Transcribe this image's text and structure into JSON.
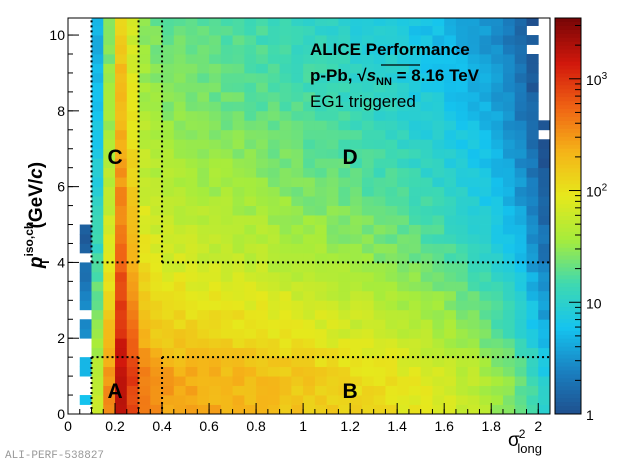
{
  "chart_data": {
    "type": "heatmap",
    "title": "",
    "xlabel": "σ²long",
    "xlabel_main": "σ",
    "xlabel_sup": "2",
    "xlabel_sub": "long",
    "ylabel": "p_T^{iso,ch} (GeV/c)",
    "ylabel_main": "p",
    "ylabel_sup": "iso,ch",
    "ylabel_sub": "T",
    "ylabel_unit": "(GeV/",
    "ylabel_unit_c": "c",
    "ylabel_unit_end": ")",
    "xlim": [
      0,
      2.05
    ],
    "ylim": [
      0,
      10.45
    ],
    "zlim": [
      1,
      3500
    ],
    "zscale": "log",
    "xticks": [
      0,
      0.2,
      0.4,
      0.6,
      0.8,
      1,
      1.2,
      1.4,
      1.6,
      1.8,
      2
    ],
    "xtick_labels": [
      "0",
      "0.2",
      "0.4",
      "0.6",
      "0.8",
      "1",
      "1.2",
      "1.4",
      "1.6",
      "1.8",
      "2"
    ],
    "yticks": [
      0,
      2,
      4,
      6,
      8,
      10
    ],
    "ytick_labels": [
      "0",
      "2",
      "4",
      "6",
      "8",
      "10"
    ],
    "zticks": [
      {
        "value": 1,
        "base": "1",
        "exp": ""
      },
      {
        "value": 10,
        "base": "10",
        "exp": ""
      },
      {
        "value": 100,
        "base": "10",
        "exp": "2"
      },
      {
        "value": 1000,
        "base": "10",
        "exp": "3"
      }
    ],
    "x_bin_width": 0.05,
    "y_bin_width": 0.25,
    "x_profile_counts_low_pt": [
      0,
      6,
      60,
      350,
      2200,
      900,
      420,
      330,
      300,
      285,
      270,
      260,
      250,
      240,
      230,
      220,
      210,
      200,
      190,
      180,
      170,
      160,
      150,
      142,
      134,
      126,
      118,
      110,
      102,
      94,
      86,
      78,
      70,
      62,
      54,
      46,
      38,
      30,
      22,
      15,
      9
    ],
    "y_profile_scale": [
      {
        "pt": 0,
        "scale": 1.0
      },
      {
        "pt": 1,
        "scale": 0.95
      },
      {
        "pt": 2,
        "scale": 0.55
      },
      {
        "pt": 4,
        "scale": 0.25
      },
      {
        "pt": 6,
        "scale": 0.15
      },
      {
        "pt": 8,
        "scale": 0.1
      },
      {
        "pt": 10.45,
        "scale": 0.07
      }
    ],
    "regions": [
      {
        "label": "A",
        "x": [
          0.1,
          0.3
        ],
        "y": [
          0,
          1.5
        ]
      },
      {
        "label": "B",
        "x": [
          0.4,
          2.05
        ],
        "y": [
          0,
          1.5
        ]
      },
      {
        "label": "C",
        "x": [
          0.1,
          0.3
        ],
        "y": [
          4,
          10.45
        ]
      },
      {
        "label": "D",
        "x": [
          0.4,
          2.05
        ],
        "y": [
          4,
          10.45
        ]
      }
    ],
    "annotations": {
      "line1": "ALICE Performance",
      "line2_pre": "p-Pb, ",
      "line2_s": "s",
      "line2_sub": "NN",
      "line2_post": " = 8.16 TeV",
      "line3": "EG1 triggered"
    },
    "colormap": [
      "#1f4e8c",
      "#1a7fc0",
      "#15c4ef",
      "#3fd9b0",
      "#a6ec3c",
      "#e6e81c",
      "#f5b418",
      "#f06414",
      "#d2180c",
      "#7a0606"
    ]
  },
  "watermark": "ALI-PERF-538827"
}
